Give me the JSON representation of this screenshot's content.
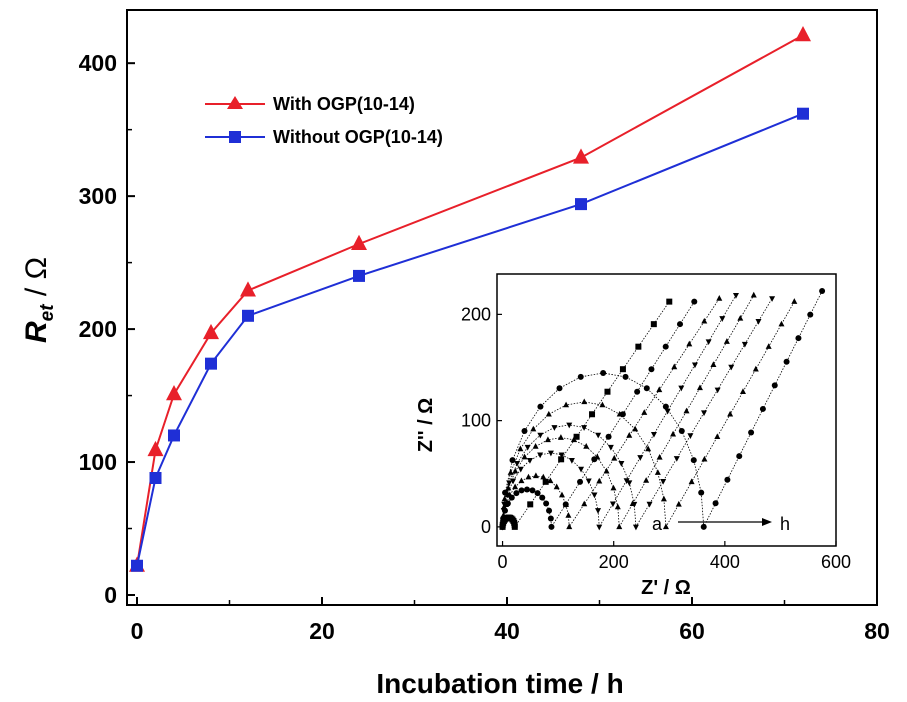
{
  "chart_data": [
    {
      "type": "line",
      "xlabel": "Incubation time / h",
      "ylabel_main": "R",
      "ylabel_sub": "et",
      "ylabel_unit": " / Ω",
      "xlim": [
        0,
        80
      ],
      "ylim": [
        0,
        440
      ],
      "xticks": [
        0,
        20,
        40,
        60,
        80
      ],
      "yticks": [
        0,
        100,
        200,
        300,
        400
      ],
      "legend_position": "top-left",
      "series": [
        {
          "name": "With OGP(10-14)",
          "color": "#e8202a",
          "marker": "triangle",
          "x": [
            0,
            2,
            4,
            8,
            12,
            24,
            48,
            72
          ],
          "y": [
            22,
            109,
            151,
            197,
            229,
            264,
            329,
            421
          ]
        },
        {
          "name": "Without OGP(10-14)",
          "color": "#1f2fd6",
          "marker": "square",
          "x": [
            0,
            2,
            4,
            8,
            12,
            24,
            48,
            72
          ],
          "y": [
            22,
            88,
            120,
            174,
            210,
            240,
            294,
            362
          ]
        }
      ]
    },
    {
      "type": "scatter",
      "role": "inset",
      "xlabel": "Z' / Ω",
      "ylabel": "Z'' / Ω",
      "xlim": [
        -10,
        600
      ],
      "ylim": [
        -18,
        238
      ],
      "xticks": [
        0,
        200,
        400,
        600
      ],
      "yticks": [
        0,
        100,
        200
      ],
      "annotation_start": "a",
      "annotation_end": "h",
      "curves": [
        {
          "rct": 22,
          "tail_end": 300,
          "tail_peak": 212,
          "marker": "square"
        },
        {
          "rct": 88,
          "tail_end": 345,
          "tail_peak": 212,
          "marker": "circle"
        },
        {
          "rct": 120,
          "tail_end": 390,
          "tail_peak": 215,
          "marker": "triangle"
        },
        {
          "rct": 174,
          "tail_end": 420,
          "tail_peak": 218,
          "marker": "triangle-down"
        },
        {
          "rct": 210,
          "tail_end": 452,
          "tail_peak": 218,
          "marker": "triangle"
        },
        {
          "rct": 240,
          "tail_end": 485,
          "tail_peak": 215,
          "marker": "triangle-down"
        },
        {
          "rct": 294,
          "tail_end": 525,
          "tail_peak": 212,
          "marker": "triangle"
        },
        {
          "rct": 362,
          "tail_end": 575,
          "tail_peak": 222,
          "marker": "circle"
        }
      ]
    }
  ]
}
